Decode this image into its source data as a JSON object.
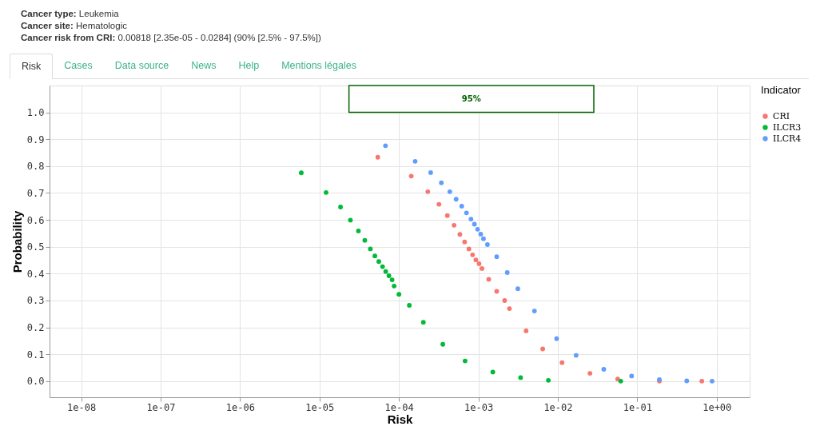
{
  "chart_data": {
    "type": "scatter",
    "title": "Cancer type: Leukemia",
    "subtitle": "Cancer site: Hematologic",
    "annotations": [
      "Cancer risk from CRI: 0.00818 [2.35e-05 - 0.0284] (90% [2.5% - 97.5%])",
      "Risk",
      "Cases",
      "Data source",
      "News",
      "Help",
      "Mentions légales"
    ],
    "xlabel": "Risk",
    "ylabel": "Probability",
    "legend_title": "Indicator",
    "legend": "right",
    "grid": true,
    "marker": "circle",
    "log": "x",
    "xlim": [
      4e-09,
      2.6
    ],
    "ylim": [
      -0.06,
      1.1
    ],
    "xticks": [
      {
        "value": 1e-08,
        "label": "1e-08"
      },
      {
        "value": 1e-07,
        "label": "1e-07"
      },
      {
        "value": 1e-06,
        "label": "1e-06"
      },
      {
        "value": 1e-05,
        "label": "1e-05"
      },
      {
        "value": 0.0001,
        "label": "1e-04"
      },
      {
        "value": 0.001,
        "label": "1e-03"
      },
      {
        "value": 0.01,
        "label": "1e-02"
      },
      {
        "value": 0.1,
        "label": "1e-01"
      },
      {
        "value": 1,
        "label": "1e+00"
      }
    ],
    "yticks": [
      {
        "value": 0,
        "label": "0.0"
      },
      0.1,
      0.2,
      0.3,
      0.4,
      0.5,
      0.6,
      0.7,
      0.8,
      0.9,
      {
        "value": 1,
        "label": "1.0"
      }
    ],
    "bands": [
      {
        "axis": "x",
        "from": 2.35e-05,
        "to": 0.0284,
        "label": "95%",
        "color": "#006400"
      }
    ],
    "series": [
      {
        "name": "CRI",
        "color": "#f8766d",
        "x": [
          5.42e-05,
          0.000143,
          0.000231,
          0.000319,
          0.000407,
          0.000494,
          0.000585,
          0.000671,
          0.00076,
          0.000845,
          0.00093,
          0.00102,
          0.00111,
          0.00135,
          0.0017,
          0.00214,
          0.00246,
          0.00399,
          0.00646,
          0.0113,
          0.0254,
          0.0567,
          0.19,
          0.65
        ],
        "values": [
          0.833,
          0.763,
          0.705,
          0.658,
          0.616,
          0.58,
          0.546,
          0.518,
          0.492,
          0.47,
          0.451,
          0.437,
          0.419,
          0.379,
          0.334,
          0.3,
          0.27,
          0.187,
          0.12,
          0.069,
          0.029,
          0.008,
          0.0,
          0.0
        ]
      },
      {
        "name": "ILCR3",
        "color": "#00ba38",
        "x": [
          5.9e-06,
          1.21e-05,
          1.84e-05,
          2.45e-05,
          3.09e-05,
          3.72e-05,
          4.37e-05,
          4.98e-05,
          5.58e-05,
          6.22e-05,
          6.82e-05,
          7.48e-05,
          8.2e-05,
          8.7e-05,
          0.0001,
          0.000135,
          0.000203,
          0.000357,
          0.00068,
          0.00152,
          0.0034,
          0.0076,
          0.062
        ],
        "values": [
          0.775,
          0.702,
          0.648,
          0.599,
          0.559,
          0.524,
          0.492,
          0.466,
          0.445,
          0.426,
          0.408,
          0.392,
          0.377,
          0.354,
          0.323,
          0.282,
          0.219,
          0.137,
          0.075,
          0.034,
          0.013,
          0.003,
          0.0
        ]
      },
      {
        "name": "ILCR4",
        "color": "#619cff",
        "x": [
          6.77e-05,
          0.00016,
          0.000251,
          0.000342,
          0.000437,
          0.000525,
          0.000617,
          0.000708,
          0.000807,
          0.000891,
          0.000977,
          0.00107,
          0.00116,
          0.0013,
          0.0017,
          0.00231,
          0.00314,
          0.00508,
          0.00966,
          0.017,
          0.0379,
          0.0849,
          0.19,
          0.42,
          0.875
        ],
        "values": [
          0.876,
          0.818,
          0.776,
          0.738,
          0.705,
          0.677,
          0.651,
          0.626,
          0.603,
          0.584,
          0.565,
          0.547,
          0.53,
          0.508,
          0.463,
          0.404,
          0.344,
          0.261,
          0.158,
          0.096,
          0.044,
          0.019,
          0.006,
          0.001,
          0.0
        ]
      }
    ]
  }
}
